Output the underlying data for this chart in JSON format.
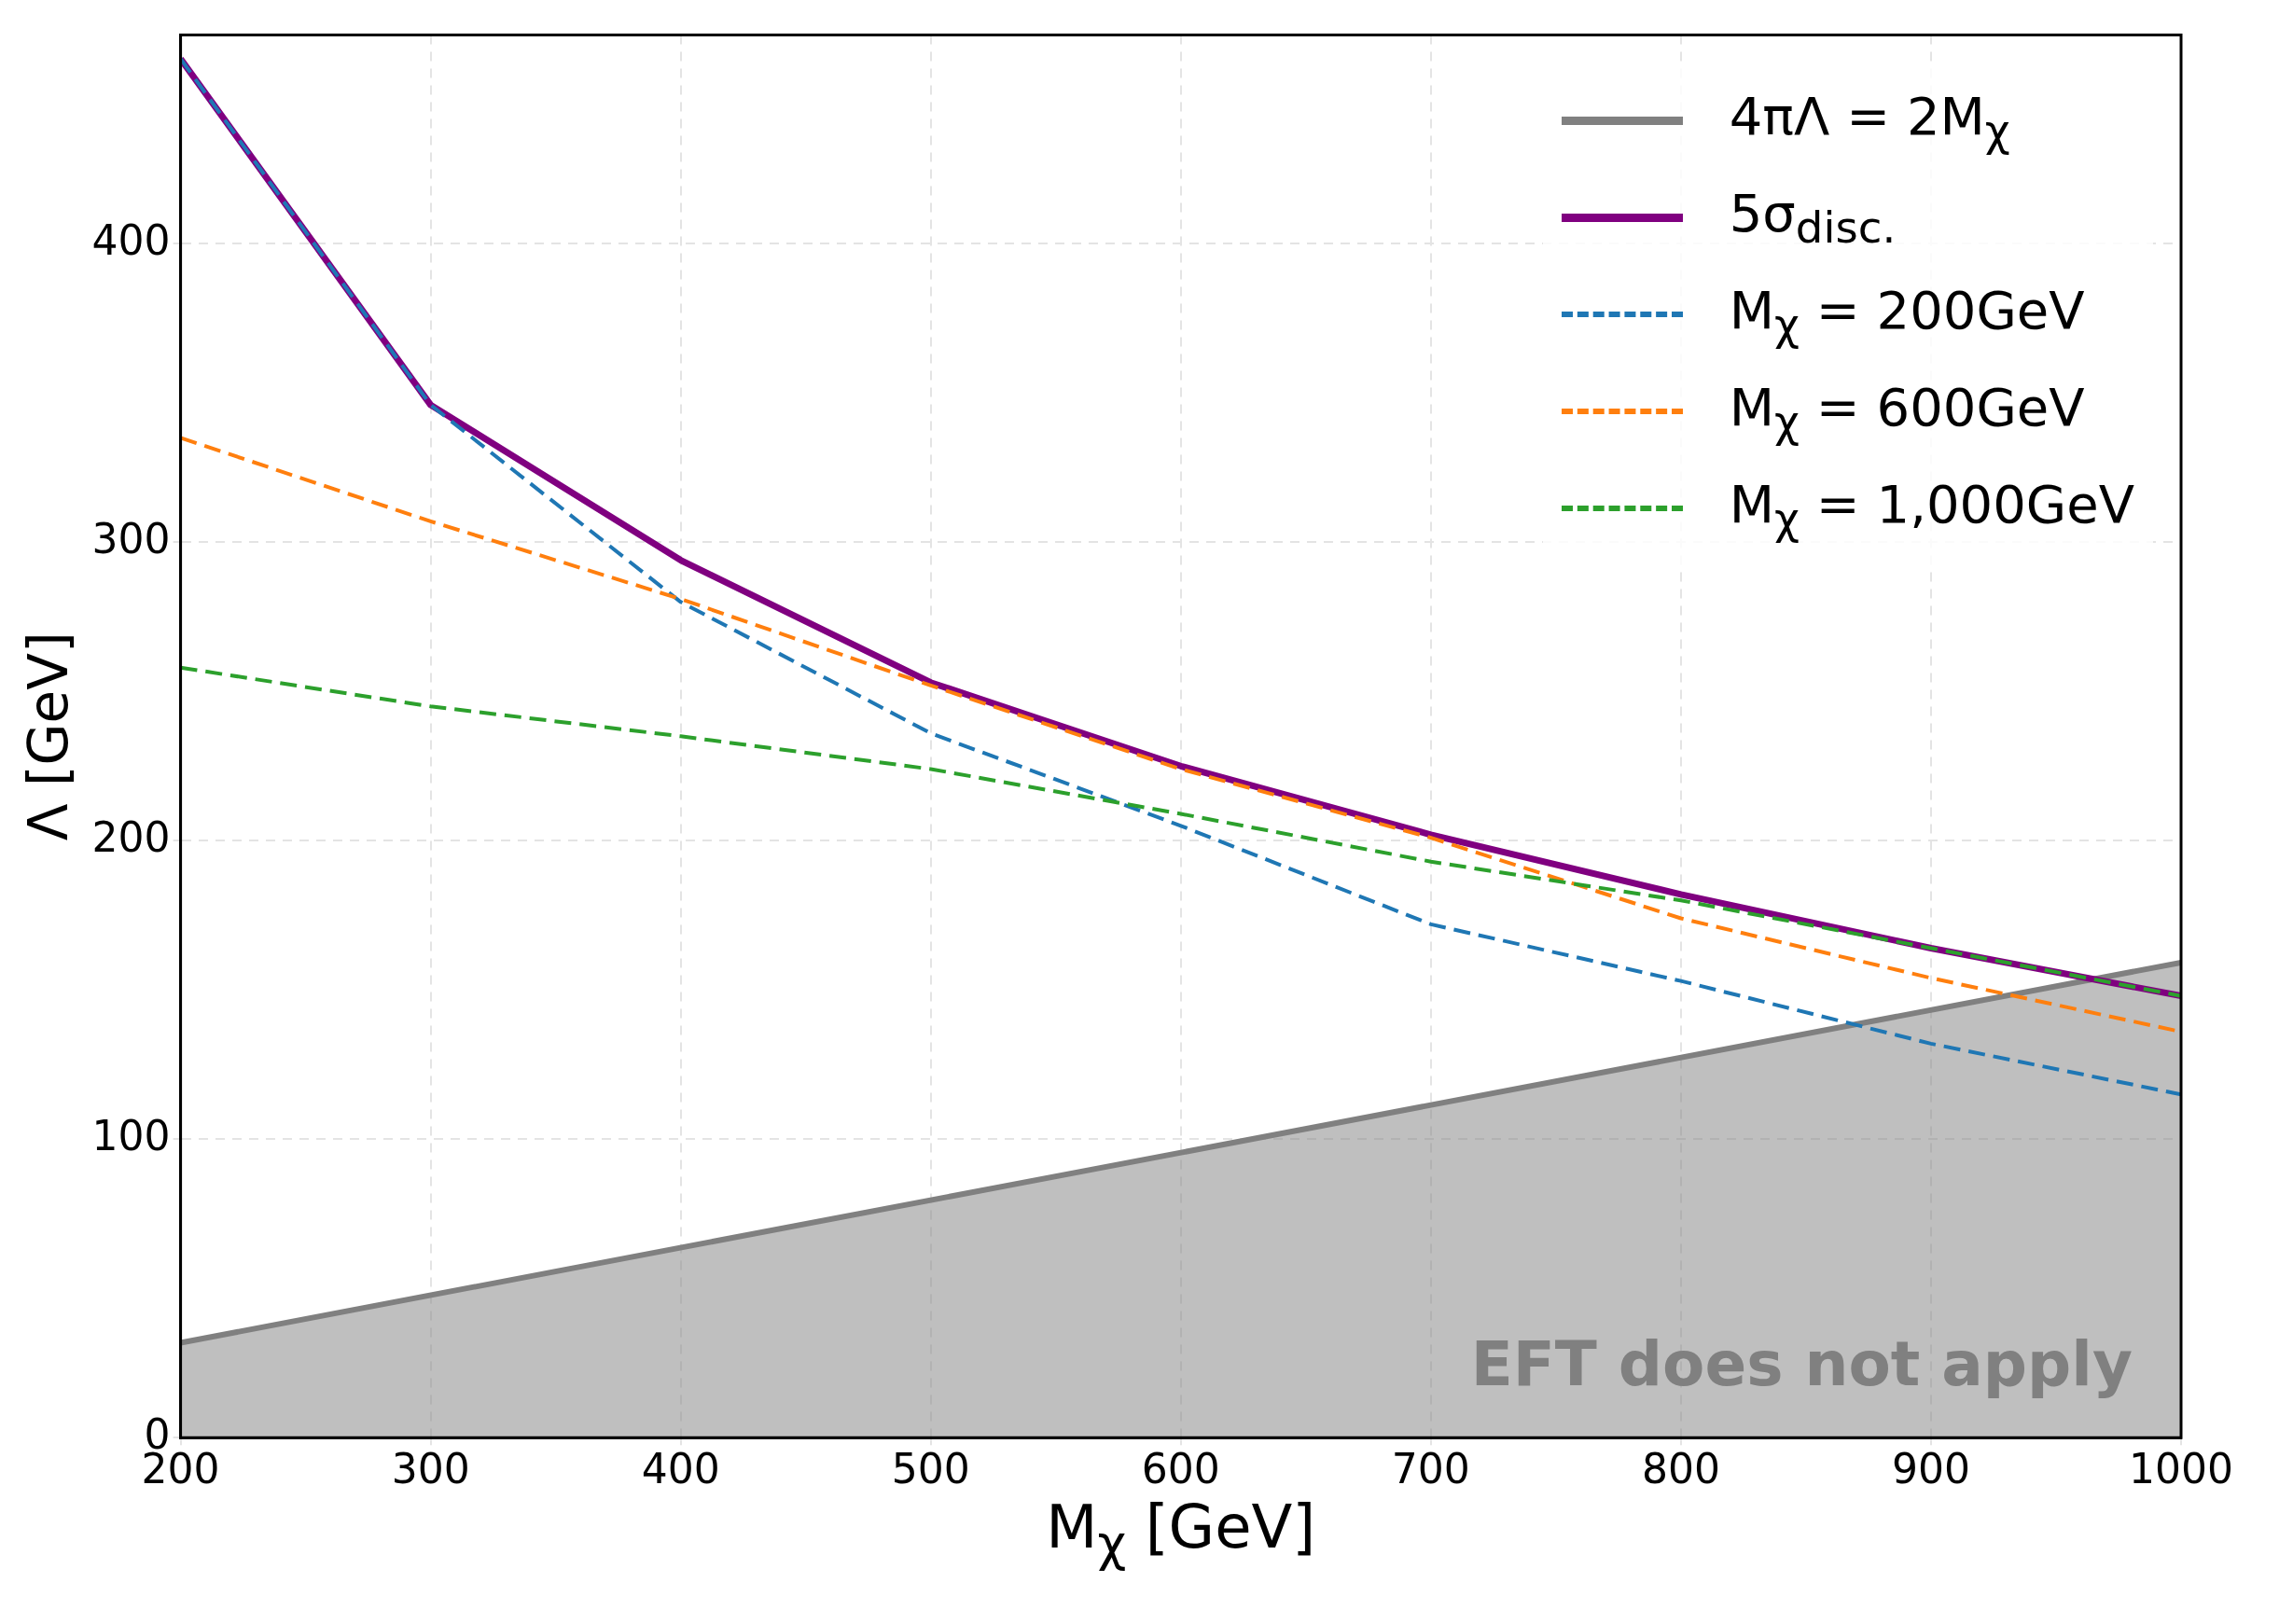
{
  "chart_data": {
    "type": "line",
    "xlabel": "M$_{χ}$ [GeV]",
    "ylabel": "Λ [GeV]",
    "x": [
      200,
      300,
      400,
      500,
      600,
      700,
      800,
      900,
      1000
    ],
    "series": [
      {
        "name": "4πΛ = 2M$_{χ}$",
        "type": "area",
        "color": "#808080",
        "x": [
          200,
          1000
        ],
        "values": [
          31.8,
          159.2
        ]
      },
      {
        "name": "5σ$_{disc.}$",
        "color": "#800080",
        "line_style": "solid",
        "values": [
          462,
          346,
          294,
          253,
          225,
          202,
          182,
          164,
          148
        ]
      },
      {
        "name": "M$_{χ}$ = 200GeV",
        "color": "#1f77b4",
        "line_style": "dashed",
        "values": [
          462,
          346,
          280,
          236,
          205,
          172,
          153,
          132,
          115
        ]
      },
      {
        "name": "M$_{χ}$ = 600GeV",
        "color": "#ff7f0e",
        "line_style": "dashed",
        "values": [
          335,
          307,
          281,
          252,
          224,
          201,
          174,
          154,
          136
        ]
      },
      {
        "name": "M$_{χ}$ = 1,000GeV",
        "color": "#2ca02c",
        "line_style": "dashed",
        "values": [
          258,
          245,
          235,
          224,
          209,
          193,
          180,
          164,
          148
        ]
      }
    ],
    "xlim": [
      200,
      1000
    ],
    "xticks": [
      200,
      300,
      400,
      500,
      600,
      700,
      800,
      900,
      1000
    ],
    "ylim": [
      0,
      470
    ],
    "yticks": [
      0,
      100,
      200,
      300,
      400
    ],
    "grid": true,
    "legend": "top right",
    "annotations": [
      "EFT does not apply"
    ]
  }
}
